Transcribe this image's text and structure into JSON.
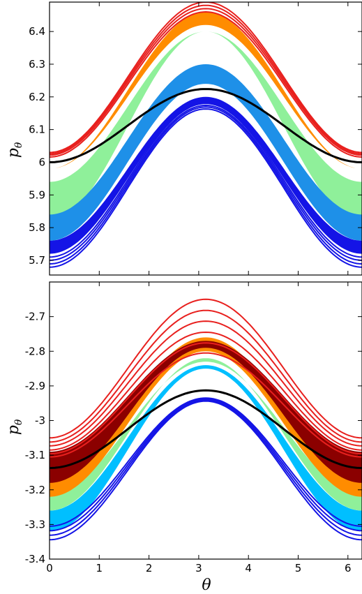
{
  "colors": {
    "red": "#e8201e",
    "orange": "#ff8c00",
    "light_green": "#8ff09a",
    "sky_blue": "#1e90e8",
    "blue": "#1414e6",
    "dark_red": "#8b0000",
    "cyan": "#00bfff",
    "white": "#ffffff",
    "black": "#000000"
  },
  "chart_data": [
    {
      "type": "line",
      "panel": "top",
      "xlabel": "",
      "ylabel": "p",
      "ylabel_sub": "θ",
      "xlim": [
        0,
        6.2832
      ],
      "ylim": [
        5.655,
        6.49
      ],
      "xticks": [
        0,
        1,
        2,
        3,
        4,
        5,
        6
      ],
      "yticks": [
        5.7,
        5.8,
        5.9,
        6.0,
        6.1,
        6.2,
        6.3,
        6.4
      ],
      "ytick_labels": [
        "5.7",
        "5.8",
        "5.9",
        "6",
        "6.1",
        "6.2",
        "6.3",
        "6.4"
      ],
      "grid": false,
      "curve_model": "p = center - amplitude * cos(theta)",
      "bands": [
        {
          "color": "orange",
          "center_min": 6.2,
          "amp_min": 0.22,
          "center_max": 6.22,
          "amp_max": 0.24
        },
        {
          "color": "light_green",
          "center_min": 6.11,
          "amp_min": 0.29,
          "center_max": 6.17,
          "amp_max": 0.23
        },
        {
          "color": "sky_blue",
          "center_min": 6.0,
          "amp_min": 0.24,
          "center_max": 6.07,
          "amp_max": 0.23
        },
        {
          "color": "blue",
          "center_min": 5.95,
          "amp_min": 0.23,
          "center_max": 5.98,
          "amp_max": 0.22
        }
      ],
      "series": [
        {
          "color": "red",
          "center": 6.26,
          "amplitude": 0.23
        },
        {
          "color": "red",
          "center": 6.253,
          "amplitude": 0.227
        },
        {
          "color": "red",
          "center": 6.246,
          "amplitude": 0.224
        },
        {
          "color": "red",
          "center": 6.238,
          "amplitude": 0.222
        },
        {
          "color": "black",
          "center": 6.112,
          "amplitude": 0.112
        },
        {
          "color": "blue",
          "center": 5.945,
          "amplitude": 0.235
        },
        {
          "color": "blue",
          "center": 5.937,
          "amplitude": 0.237
        },
        {
          "color": "blue",
          "center": 5.929,
          "amplitude": 0.24
        },
        {
          "color": "blue",
          "center": 5.921,
          "amplitude": 0.242
        }
      ]
    },
    {
      "type": "line",
      "panel": "bottom",
      "xlabel": "θ",
      "ylabel": "p",
      "ylabel_sub": "θ",
      "xlim": [
        0,
        6.2832
      ],
      "ylim": [
        -3.4,
        -2.6
      ],
      "xticks": [
        0,
        1,
        2,
        3,
        4,
        5,
        6
      ],
      "xtick_labels": [
        "0",
        "1",
        "2",
        "3",
        "4",
        "5",
        "6"
      ],
      "yticks": [
        -3.4,
        -3.3,
        -3.2,
        -3.1,
        -3.0,
        -2.9,
        -2.8,
        -2.7
      ],
      "ytick_labels": [
        "-3.4",
        "-3.3",
        "-3.2",
        "-3.1",
        "-3",
        "-2.9",
        "-2.8",
        "-2.7"
      ],
      "grid": false,
      "curve_model": "p = center - amplitude * cos(theta)",
      "bands": [
        {
          "color": "cyan",
          "center_min": -3.085,
          "amp_min": 0.235,
          "center_max": -3.05,
          "amp_max": 0.21
        },
        {
          "color": "light_green",
          "center_min": -3.04,
          "amp_min": 0.22,
          "center_max": -3.02,
          "amp_max": 0.19
        },
        {
          "color": "orange",
          "center_min": -3.01,
          "amp_min": 0.21,
          "center_max": -2.96,
          "amp_max": 0.2
        },
        {
          "color": "dark_red",
          "center_min": -2.985,
          "amp_min": 0.195,
          "center_max": -2.93,
          "amp_max": 0.16
        }
      ],
      "series": [
        {
          "color": "red",
          "center": -2.85,
          "amplitude": 0.2
        },
        {
          "color": "red",
          "center": -2.872,
          "amplitude": 0.19
        },
        {
          "color": "red",
          "center": -2.893,
          "amplitude": 0.18
        },
        {
          "color": "red",
          "center": -2.915,
          "amplitude": 0.17
        },
        {
          "color": "red",
          "center": -2.936,
          "amplitude": 0.16
        },
        {
          "color": "red",
          "center": -2.955,
          "amplitude": 0.15
        },
        {
          "color": "black",
          "center": -3.025,
          "amplitude": 0.112
        },
        {
          "color": "blue",
          "center": -3.12,
          "amplitude": 0.185
        },
        {
          "color": "blue",
          "center": -3.128,
          "amplitude": 0.19
        },
        {
          "color": "blue",
          "center": -3.136,
          "amplitude": 0.195
        },
        {
          "color": "blue",
          "center": -3.144,
          "amplitude": 0.2
        }
      ],
      "islands": [
        {
          "theta": 0.6,
          "p": -2.825,
          "color": "white"
        },
        {
          "theta": 5.7,
          "p": -2.825,
          "color": "white"
        },
        {
          "theta": 3.14,
          "p": -3.18,
          "color": "white"
        }
      ]
    }
  ]
}
